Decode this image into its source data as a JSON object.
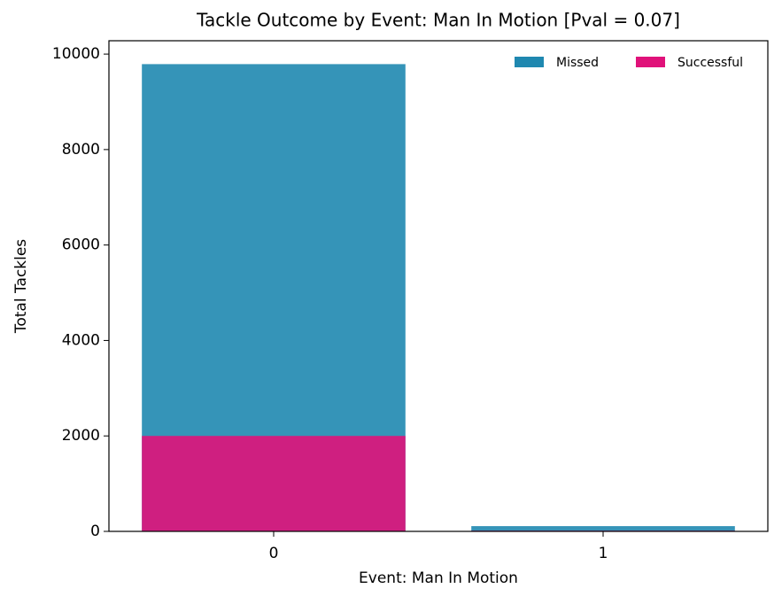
{
  "chart_data": {
    "type": "overlap_bar",
    "title": "Tackle Outcome by Event: Man In Motion [Pval = 0.07]",
    "x_label": "Event: Man In Motion",
    "y_label": "Total Tackles",
    "categories": [
      "0",
      "1"
    ],
    "series": [
      {
        "name": "Missed",
        "color": "#1f88b0",
        "values": [
          9790,
          110
        ]
      },
      {
        "name": "Successful",
        "color": "#e0127a",
        "values": [
          2000,
          15
        ]
      }
    ],
    "ylim": [
      0,
      10280
    ],
    "yticks": [
      0,
      2000,
      4000,
      6000,
      8000,
      10000
    ],
    "legend": "upper right"
  }
}
